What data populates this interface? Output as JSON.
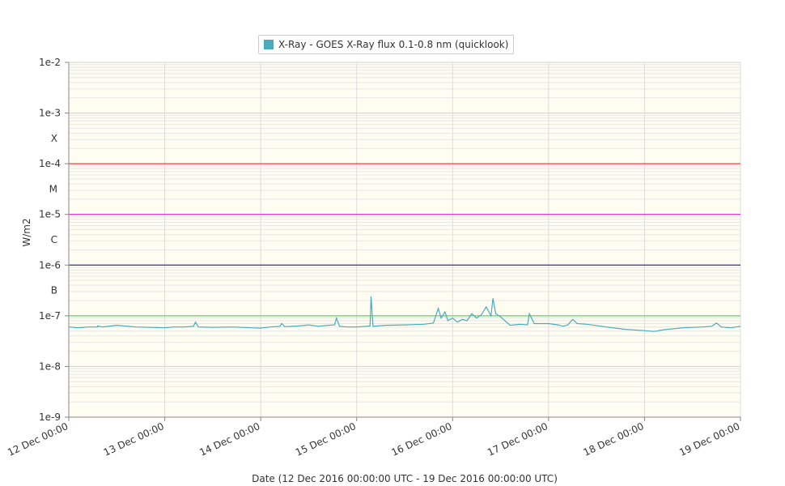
{
  "legend": {
    "label": "X-Ray - GOES X-Ray flux 0.1-0.8 nm (quicklook)",
    "color": "#4aabbb"
  },
  "axes": {
    "ylabel": "W/m2",
    "xlabel": "Date (12 Dec 2016 00:00:00 UTC - 19 Dec 2016 00:00:00 UTC)"
  },
  "chart_data": {
    "type": "line",
    "y_scale": "log",
    "ylim": [
      1e-09,
      0.01
    ],
    "xlim": [
      "2016-12-12 00:00",
      "2016-12-19 00:00"
    ],
    "y_ticks": [
      {
        "value": 0.01,
        "label": "1e-2"
      },
      {
        "value": 0.001,
        "label": "1e-3"
      },
      {
        "value": 0.0001,
        "label": "1e-4"
      },
      {
        "value": 1e-05,
        "label": "1e-5"
      },
      {
        "value": 1e-06,
        "label": "1e-6"
      },
      {
        "value": 1e-07,
        "label": "1e-7"
      },
      {
        "value": 1e-08,
        "label": "1e-8"
      },
      {
        "value": 1e-09,
        "label": "1e-9"
      }
    ],
    "flare_classes": [
      {
        "label": "X",
        "value": 0.000316
      },
      {
        "label": "M",
        "value": 3.16e-05
      },
      {
        "label": "C",
        "value": 3.16e-06
      },
      {
        "label": "B",
        "value": 3.16e-07
      }
    ],
    "x_ticks": [
      {
        "day": 0,
        "label": "12 Dec 00:00"
      },
      {
        "day": 1,
        "label": "13 Dec 00:00"
      },
      {
        "day": 2,
        "label": "14 Dec 00:00"
      },
      {
        "day": 3,
        "label": "15 Dec 00:00"
      },
      {
        "day": 4,
        "label": "16 Dec 00:00"
      },
      {
        "day": 5,
        "label": "17 Dec 00:00"
      },
      {
        "day": 6,
        "label": "18 Dec 00:00"
      },
      {
        "day": 7,
        "label": "19 Dec 00:00"
      }
    ],
    "threshold_lines": [
      {
        "value": 0.0001,
        "color": "#ee4444"
      },
      {
        "value": 1e-05,
        "color": "#cc33cc"
      },
      {
        "value": 1e-06,
        "color": "#333399"
      },
      {
        "value": 1e-07,
        "color": "#55dd55"
      }
    ],
    "grid": true,
    "legend_position": "top-center",
    "series": [
      {
        "name": "X-Ray - GOES X-Ray flux 0.1-0.8 nm (quicklook)",
        "color": "#4aabbb",
        "x": [
          0,
          0.1,
          0.2,
          0.3,
          0.3,
          0.35,
          0.5,
          0.7,
          1.0,
          1.1,
          1.2,
          1.3,
          1.32,
          1.35,
          1.5,
          1.7,
          1.9,
          2.0,
          2.1,
          2.2,
          2.22,
          2.25,
          2.4,
          2.5,
          2.6,
          2.7,
          2.77,
          2.79,
          2.82,
          2.9,
          3.0,
          3.1,
          3.14,
          3.15,
          3.17,
          3.3,
          3.5,
          3.7,
          3.8,
          3.85,
          3.88,
          3.92,
          3.95,
          4.0,
          4.05,
          4.1,
          4.15,
          4.2,
          4.25,
          4.3,
          4.35,
          4.4,
          4.42,
          4.45,
          4.5,
          4.6,
          4.7,
          4.78,
          4.8,
          4.85,
          5.0,
          5.1,
          5.15,
          5.2,
          5.25,
          5.3,
          5.4,
          5.6,
          5.8,
          6.0,
          6.1,
          6.2,
          6.4,
          6.6,
          6.7,
          6.75,
          6.8,
          6.9,
          7.0
        ],
        "y": [
          6e-08,
          5.8e-08,
          6e-08,
          6e-08,
          6.3e-08,
          6e-08,
          6.5e-08,
          6e-08,
          5.8e-08,
          6e-08,
          6e-08,
          6.2e-08,
          7.5e-08,
          6e-08,
          5.9e-08,
          6e-08,
          5.8e-08,
          5.7e-08,
          6e-08,
          6.2e-08,
          7e-08,
          6.1e-08,
          6.3e-08,
          6.6e-08,
          6.2e-08,
          6.5e-08,
          6.6e-08,
          9e-08,
          6.2e-08,
          6e-08,
          6e-08,
          6.2e-08,
          6.3e-08,
          2.4e-07,
          6.2e-08,
          6.5e-08,
          6.6e-08,
          6.8e-08,
          7.2e-08,
          1.4e-07,
          9e-08,
          1.2e-07,
          8e-08,
          9e-08,
          7.5e-08,
          8.5e-08,
          8e-08,
          1.1e-07,
          9e-08,
          1.05e-07,
          1.5e-07,
          1e-07,
          2.2e-07,
          1.1e-07,
          9.5e-08,
          6.5e-08,
          6.8e-08,
          6.6e-08,
          1.1e-07,
          7e-08,
          7e-08,
          6.6e-08,
          6.2e-08,
          6.6e-08,
          8.5e-08,
          7e-08,
          6.8e-08,
          6e-08,
          5.4e-08,
          5.1e-08,
          4.9e-08,
          5.3e-08,
          5.8e-08,
          6e-08,
          6.2e-08,
          7.2e-08,
          6e-08,
          5.8e-08,
          6.2e-08
        ]
      }
    ]
  }
}
